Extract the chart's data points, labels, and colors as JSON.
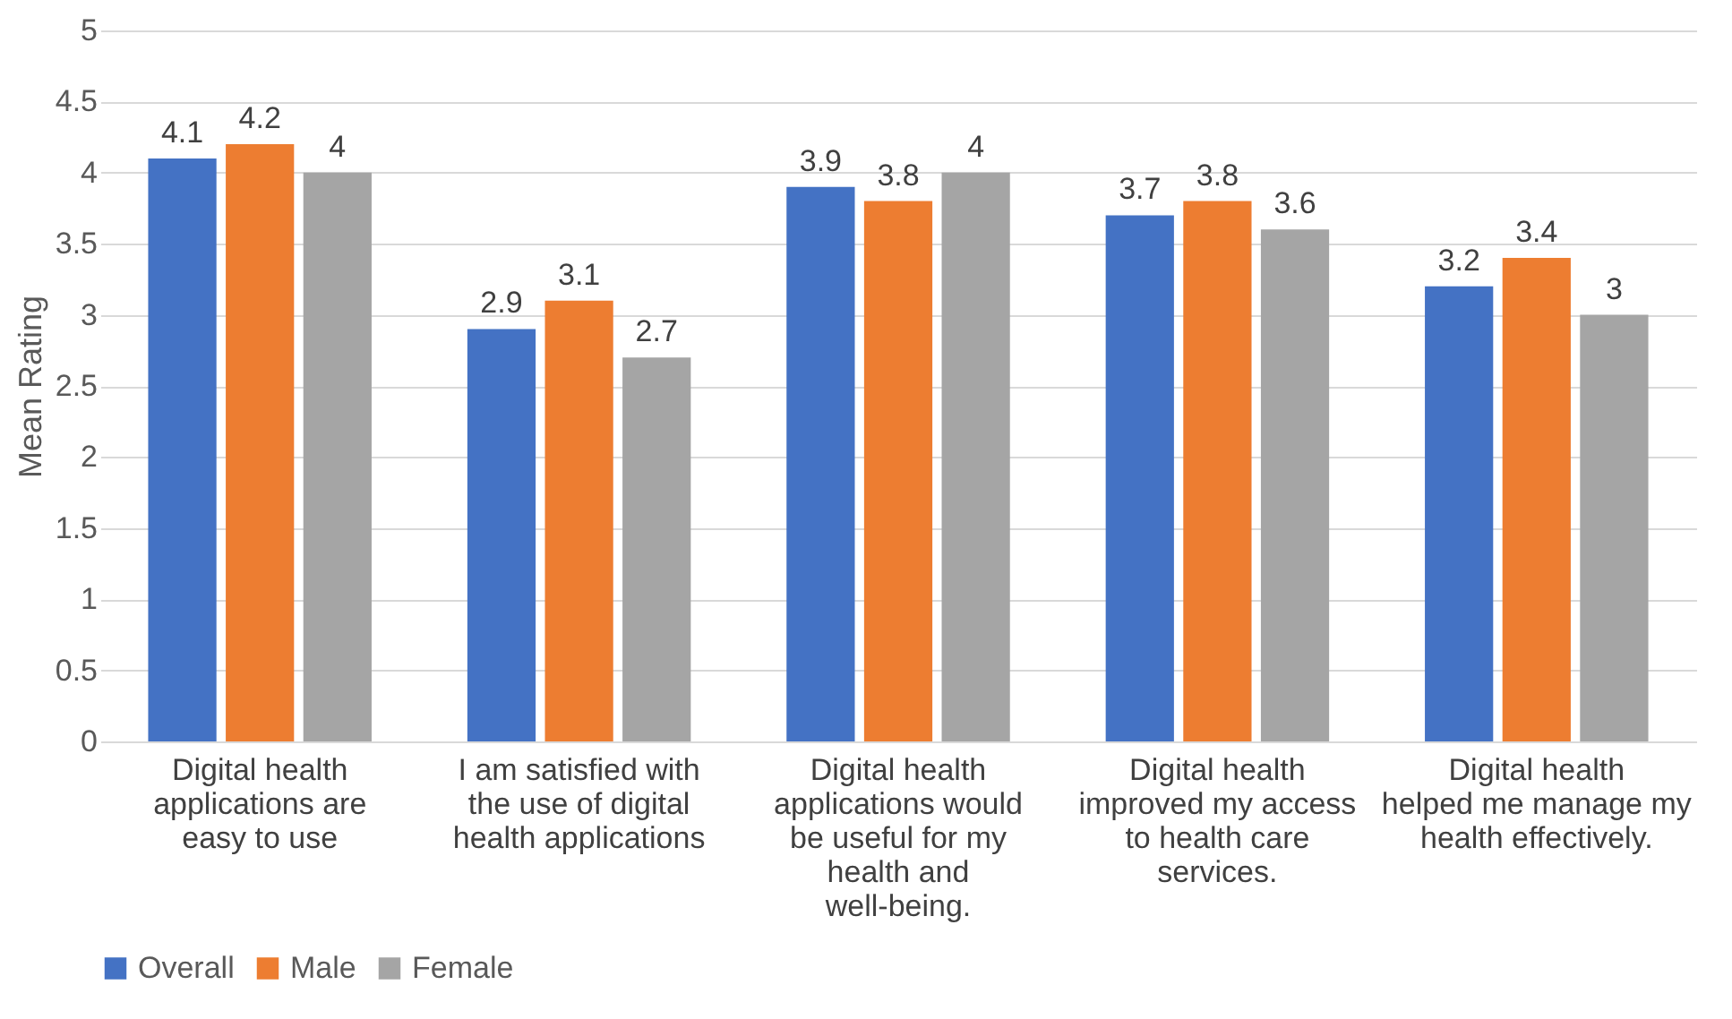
{
  "chart_data": {
    "type": "bar",
    "ylabel": "Mean Rating",
    "categories": [
      "Digital health applications are easy to use",
      "I am satisfied with the use of digital health applications",
      "Digital health applications would be useful for my health and well-being.",
      "Digital health improved my access to health care services.",
      "Digital health helped me manage my health effectively."
    ],
    "series": [
      {
        "name": "Overall",
        "color": "#4472c4",
        "values": [
          4.1,
          2.9,
          3.9,
          3.7,
          3.2
        ]
      },
      {
        "name": "Male",
        "color": "#ed7d31",
        "values": [
          4.2,
          3.1,
          3.8,
          3.8,
          3.4
        ]
      },
      {
        "name": "Female",
        "color": "#a5a5a5",
        "values": [
          4,
          2.7,
          4,
          3.6,
          3
        ]
      }
    ],
    "ylim": [
      0,
      5
    ],
    "yticks": [
      0,
      0.5,
      1,
      1.5,
      2,
      2.5,
      3,
      3.5,
      4,
      4.5,
      5
    ],
    "grid": "y",
    "legend": "bottom",
    "data_labels": true
  }
}
